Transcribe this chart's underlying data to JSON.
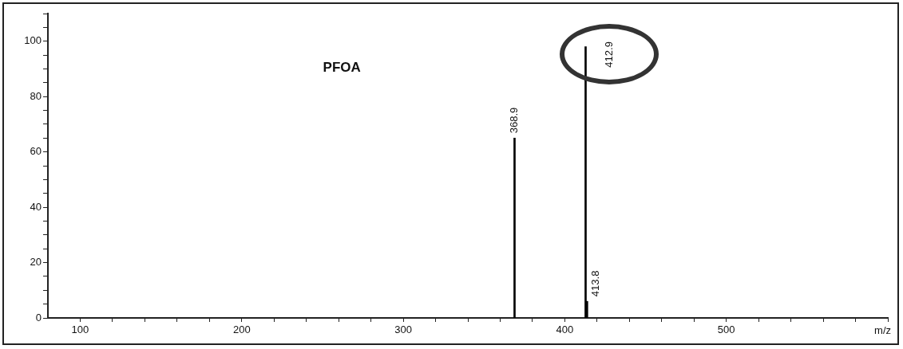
{
  "chart_data": {
    "type": "bar",
    "title": "PFOA",
    "xlabel": "m/z",
    "x": [
      368.9,
      412.9,
      413.8
    ],
    "values": [
      65,
      98,
      6
    ],
    "annotations": [
      {
        "text": "368.9",
        "x": 368.9,
        "y": 65
      },
      {
        "text": "412.9",
        "x": 412.9,
        "y": 98
      },
      {
        "text": "413.8",
        "x": 413.8,
        "y": 6
      }
    ],
    "color": "#000000",
    "xlim": [
      80,
      600
    ],
    "xticks": [
      100,
      {
        "value": 120,
        "label": null
      },
      {
        "value": 140,
        "label": null
      },
      {
        "value": 160,
        "label": null
      },
      {
        "value": 180,
        "label": null
      },
      200,
      {
        "value": 220,
        "label": null
      },
      {
        "value": 240,
        "label": null
      },
      {
        "value": 260,
        "label": null
      },
      {
        "value": 280,
        "label": null
      },
      300,
      {
        "value": 320,
        "label": null
      },
      {
        "value": 340,
        "label": null
      },
      {
        "value": 360,
        "label": null
      },
      {
        "value": 380,
        "label": null
      },
      400,
      {
        "value": 420,
        "label": null
      },
      {
        "value": 440,
        "label": null
      },
      {
        "value": 460,
        "label": null
      },
      {
        "value": 480,
        "label": null
      },
      500,
      {
        "value": 520,
        "label": null
      },
      {
        "value": 540,
        "label": null
      },
      {
        "value": 560,
        "label": null
      },
      {
        "value": 580,
        "label": null
      },
      {
        "value": 600,
        "label": null
      }
    ],
    "ylim": [
      0,
      110
    ],
    "yticks": [
      0,
      {
        "value": 5,
        "label": null
      },
      {
        "value": 10,
        "label": null
      },
      {
        "value": 15,
        "label": null
      },
      20,
      {
        "value": 25,
        "label": null
      },
      {
        "value": 30,
        "label": null
      },
      {
        "value": 35,
        "label": null
      },
      40,
      {
        "value": 45,
        "label": null
      },
      {
        "value": 50,
        "label": null
      },
      {
        "value": 55,
        "label": null
      },
      60,
      {
        "value": 65,
        "label": null
      },
      {
        "value": 70,
        "label": null
      },
      {
        "value": 75,
        "label": null
      },
      80,
      {
        "value": 85,
        "label": null
      },
      {
        "value": 90,
        "label": null
      },
      {
        "value": 95,
        "label": null
      },
      100,
      {
        "value": 105,
        "label": null
      },
      {
        "value": 110,
        "label": null
      }
    ],
    "grid": false,
    "legend": false
  }
}
